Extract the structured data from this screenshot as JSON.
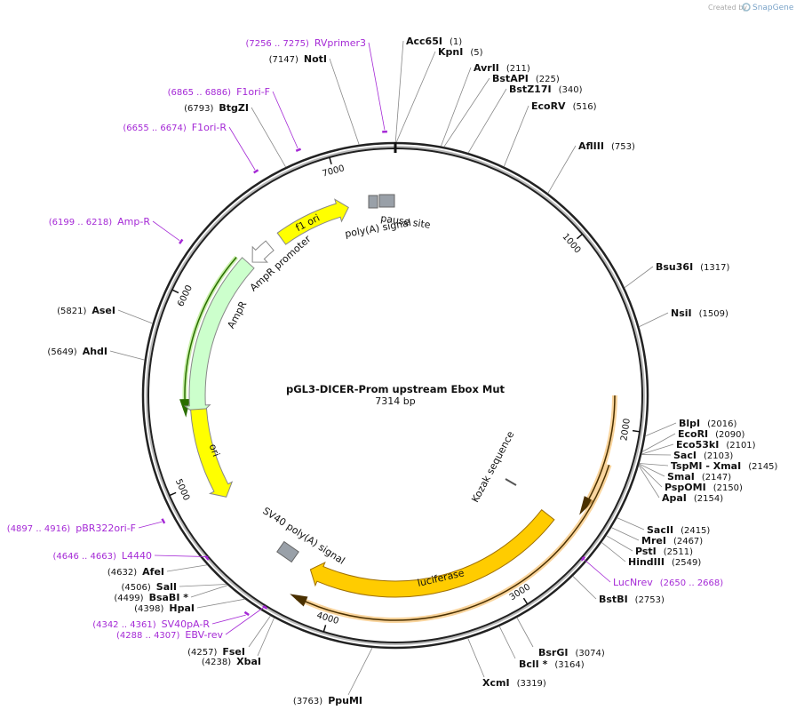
{
  "branding": {
    "created_by": "Created by",
    "logo": "SnapGene"
  },
  "map": {
    "name": "pGL3-DICER-Prom upstream Ebox Mut",
    "length": "7314 bp",
    "ticks": [
      1000,
      2000,
      3000,
      4000,
      5000,
      6000,
      7000
    ]
  },
  "sites": [
    {
      "name": "Acc65I",
      "position": "(1)"
    },
    {
      "name": "KpnI",
      "position": "(5)"
    },
    {
      "name": "AvrII",
      "position": "(211)"
    },
    {
      "name": "BstAPI",
      "position": "(225)"
    },
    {
      "name": "BstZ17I",
      "position": "(340)"
    },
    {
      "name": "EcoRV",
      "position": "(516)"
    },
    {
      "name": "AflIII",
      "position": "(753)"
    },
    {
      "name": "Bsu36I",
      "position": "(1317)"
    },
    {
      "name": "NsiI",
      "position": "(1509)"
    },
    {
      "name": "BlpI",
      "position": "(2016)"
    },
    {
      "name": "EcoRI",
      "position": "(2090)"
    },
    {
      "name": "Eco53kI",
      "position": "(2101)"
    },
    {
      "name": "SacI",
      "position": "(2103)"
    },
    {
      "name": "TspMI - XmaI",
      "position": "(2145)"
    },
    {
      "name": "SmaI",
      "position": "(2147)"
    },
    {
      "name": "PspOMI",
      "position": "(2150)"
    },
    {
      "name": "ApaI",
      "position": "(2154)"
    },
    {
      "name": "SacII",
      "position": "(2415)"
    },
    {
      "name": "MreI",
      "position": "(2467)"
    },
    {
      "name": "PstI",
      "position": "(2511)"
    },
    {
      "name": "HindIII",
      "position": "(2549)"
    },
    {
      "name": "BstBI",
      "position": "(2753)"
    },
    {
      "name": "BsrGI",
      "position": "(3074)"
    },
    {
      "name": "BclI *",
      "position": "(3164)"
    },
    {
      "name": "XcmI",
      "position": "(3319)"
    },
    {
      "name": "PpuMI",
      "position": "(3763)"
    },
    {
      "name": "XbaI",
      "position": "(4238)"
    },
    {
      "name": "FseI",
      "position": "(4257)"
    },
    {
      "name": "HpaI",
      "position": "(4398)"
    },
    {
      "name": "BsaBI *",
      "position": "(4499)"
    },
    {
      "name": "SalI",
      "position": "(4506)"
    },
    {
      "name": "AfeI",
      "position": "(4632)"
    },
    {
      "name": "AhdI",
      "position": "(5649)"
    },
    {
      "name": "AseI",
      "position": "(5821)"
    },
    {
      "name": "BtgZI",
      "position": "(6793)"
    },
    {
      "name": "NotI",
      "position": "(7147)"
    }
  ],
  "primers": [
    {
      "name": "RVprimer3",
      "range": "(7256 .. 7275)"
    },
    {
      "name": "F1ori-F",
      "range": "(6865 .. 6886)"
    },
    {
      "name": "F1ori-R",
      "range": "(6655 .. 6674)"
    },
    {
      "name": "Amp-R",
      "range": "(6199 .. 6218)"
    },
    {
      "name": "pBR322ori-F",
      "range": "(4897 .. 4916)"
    },
    {
      "name": "L4440",
      "range": "(4646 .. 4663)"
    },
    {
      "name": "SV40pA-R",
      "range": "(4342 .. 4361)"
    },
    {
      "name": "EBV-rev",
      "range": "(4288 .. 4307)"
    },
    {
      "name": "LucNrev",
      "range": "(2650 .. 2668)"
    }
  ],
  "features": {
    "f1_ori": "f1 ori",
    "ampr_promoter": "AmpR promoter",
    "ampr": "AmpR",
    "ori": "ori",
    "luciferase": "luciferase",
    "sv40": "SV40 poly(A) signal",
    "pause_site": "pause site",
    "polya": "poly(A) signal",
    "kozak": "Kozak sequence"
  }
}
